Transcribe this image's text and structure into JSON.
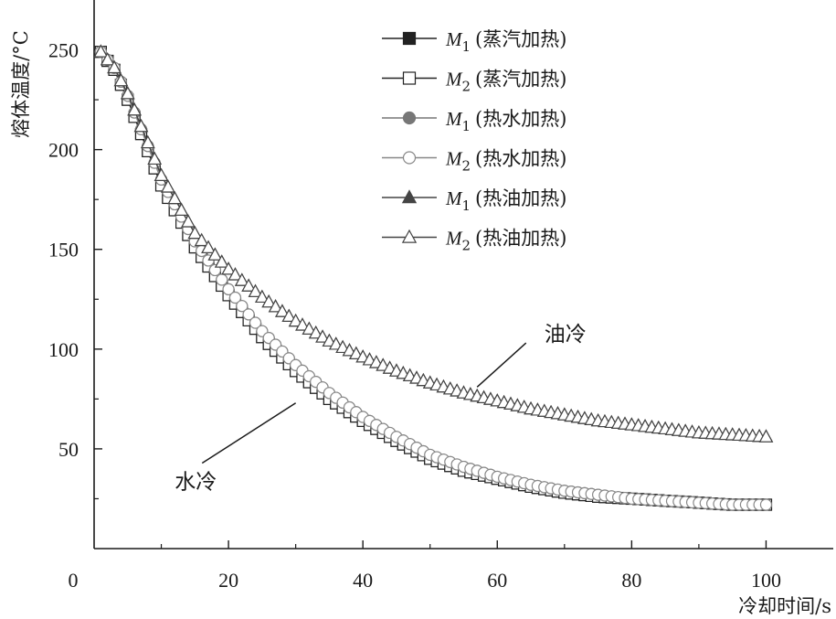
{
  "chart_data": {
    "type": "line",
    "xlabel": "冷却时间/s",
    "ylabel": "熔体温度/°C",
    "xlim": [
      0,
      110
    ],
    "ylim": [
      0,
      275
    ],
    "x_ticks": [
      0,
      20,
      40,
      60,
      80,
      100
    ],
    "y_ticks": [
      50,
      100,
      150,
      200,
      250
    ],
    "grid": false,
    "legend_position": "top-right",
    "series": [
      {
        "name": "M1 (蒸汽加热)",
        "sym": "M",
        "sub": "1",
        "heat": "(蒸汽加热)",
        "marker": "square",
        "fill": "filled",
        "color": "#222222",
        "x": [
          1,
          3,
          5,
          10,
          15,
          20,
          25,
          30,
          35,
          40,
          45,
          50,
          55,
          60,
          65,
          70,
          75,
          80,
          85,
          90,
          95,
          100
        ],
        "y": [
          249,
          240,
          225,
          182,
          151,
          127,
          106,
          89,
          75,
          64,
          54,
          45,
          39,
          35,
          31,
          28,
          26,
          25,
          24,
          23,
          22,
          22
        ]
      },
      {
        "name": "M2 (蒸汽加热)",
        "sym": "M",
        "sub": "2",
        "heat": "(蒸汽加热)",
        "marker": "square",
        "fill": "open",
        "color": "#222222",
        "x": [
          1,
          3,
          5,
          10,
          15,
          20,
          25,
          30,
          35,
          40,
          45,
          50,
          55,
          60,
          65,
          70,
          75,
          80,
          85,
          90,
          95,
          100
        ],
        "y": [
          249,
          240,
          225,
          182,
          151,
          127,
          106,
          89,
          75,
          64,
          54,
          45,
          39,
          35,
          31,
          28,
          26,
          25,
          24,
          23,
          22,
          22
        ]
      },
      {
        "name": "M1 (热水加热)",
        "sym": "M",
        "sub": "1",
        "heat": "(热水加热)",
        "marker": "circle",
        "fill": "filled",
        "color": "#777777",
        "x": [
          1,
          3,
          5,
          10,
          15,
          20,
          25,
          30,
          35,
          40,
          45,
          50,
          55,
          60,
          65,
          70,
          75,
          80,
          85,
          90,
          95,
          100
        ],
        "y": [
          249,
          241,
          227,
          185,
          154,
          130,
          109,
          92,
          78,
          66,
          56,
          47,
          41,
          36,
          32,
          29,
          27,
          25,
          24,
          23,
          22,
          22
        ]
      },
      {
        "name": "M2 (热水加热)",
        "sym": "M",
        "sub": "2",
        "heat": "(热水加热)",
        "marker": "circle",
        "fill": "open",
        "color": "#888888",
        "x": [
          1,
          3,
          5,
          10,
          15,
          20,
          25,
          30,
          35,
          40,
          45,
          50,
          55,
          60,
          65,
          70,
          75,
          80,
          85,
          90,
          95,
          100
        ],
        "y": [
          249,
          241,
          227,
          185,
          154,
          130,
          109,
          92,
          78,
          66,
          56,
          47,
          41,
          36,
          32,
          29,
          27,
          25,
          24,
          23,
          22,
          22
        ]
      },
      {
        "name": "M1 (热油加热)",
        "sym": "M",
        "sub": "1",
        "heat": "(热油加热)",
        "marker": "triangle",
        "fill": "filled",
        "color": "#444444",
        "x": [
          1,
          3,
          5,
          10,
          15,
          20,
          25,
          30,
          35,
          40,
          45,
          50,
          55,
          60,
          65,
          70,
          75,
          80,
          85,
          90,
          95,
          100
        ],
        "y": [
          249,
          241,
          228,
          187,
          158,
          140,
          126,
          114,
          104,
          96,
          89,
          83,
          78,
          74,
          70,
          67,
          64,
          62,
          60,
          58,
          57,
          56
        ]
      },
      {
        "name": "M2 (热油加热)",
        "sym": "M",
        "sub": "2",
        "heat": "(热油加热)",
        "marker": "triangle",
        "fill": "open",
        "color": "#444444",
        "x": [
          1,
          3,
          5,
          10,
          15,
          20,
          25,
          30,
          35,
          40,
          45,
          50,
          55,
          60,
          65,
          70,
          75,
          80,
          85,
          90,
          95,
          100
        ],
        "y": [
          249,
          241,
          228,
          187,
          158,
          140,
          126,
          114,
          104,
          96,
          89,
          83,
          78,
          74,
          70,
          67,
          64,
          62,
          60,
          58,
          57,
          56
        ]
      }
    ],
    "annotations": [
      {
        "text": "油冷",
        "text_x": 67,
        "text_y": 104,
        "arrow_to": [
          57,
          81
        ]
      },
      {
        "text": "水冷",
        "text_x": 12,
        "text_y": 30,
        "arrow_to": [
          30,
          73
        ]
      }
    ]
  }
}
